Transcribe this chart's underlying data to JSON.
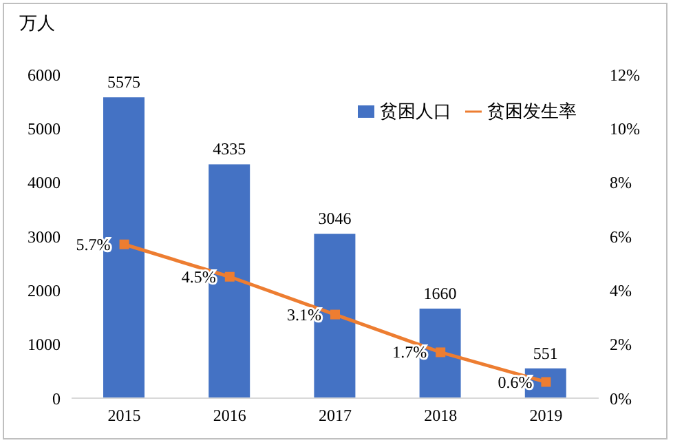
{
  "chart_data": {
    "type": "bar",
    "ylabel": "万人",
    "categories": [
      "2015",
      "2016",
      "2017",
      "2018",
      "2019"
    ],
    "series": [
      {
        "name": "贫困人口",
        "color": "#4472c4",
        "values": [
          5575,
          4335,
          3046,
          1660,
          551
        ],
        "value_labels": [
          "5575",
          "4335",
          "3046",
          "1660",
          "551"
        ]
      },
      {
        "name": "贫困发生率",
        "type": "line",
        "axis": "y2",
        "color": "#ed7d31",
        "marker": "square",
        "values": [
          5.7,
          4.5,
          3.1,
          1.7,
          0.6
        ],
        "value_labels": [
          "5.7%",
          "4.5%",
          "3.1%",
          "1.7%",
          "0.6%"
        ]
      }
    ],
    "ylim": [
      0,
      6000
    ],
    "yticks": [
      0,
      1000,
      2000,
      3000,
      4000,
      5000,
      6000
    ],
    "y2lim": [
      0,
      12
    ],
    "y2ticks": [
      {
        "value": 0,
        "label": "0%"
      },
      {
        "value": 2,
        "label": "2%"
      },
      {
        "value": 4,
        "label": "4%"
      },
      {
        "value": 6,
        "label": "6%"
      },
      {
        "value": 8,
        "label": "8%"
      },
      {
        "value": 10,
        "label": "10%"
      },
      {
        "value": 12,
        "label": "12%"
      }
    ],
    "grid": false,
    "legend": "top right"
  }
}
